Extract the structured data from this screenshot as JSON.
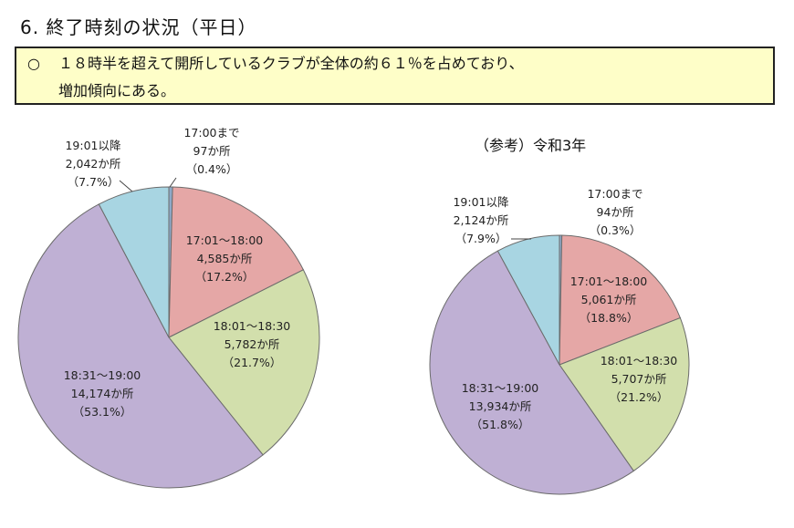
{
  "heading": "6. 終了時刻の状況（平日）",
  "summary": {
    "bullet": "○",
    "line1": "１８時半を超えて開所しているクラブが全体の約６１％を占めており、",
    "line2": "増加傾向にある。"
  },
  "chart_data": [
    {
      "type": "pie",
      "title": "",
      "start": "top",
      "direction": "clockwise",
      "slices": [
        {
          "label": "17:00まで",
          "count": "97か所",
          "pct": "（0.4%）",
          "value": 0.4,
          "color": "#8EA9C8"
        },
        {
          "label": "17:01～18:00",
          "count": "4,585か所",
          "pct": "（17.2%）",
          "value": 17.2,
          "color": "#E5A7A6"
        },
        {
          "label": "18:01～18:30",
          "count": "5,782か所",
          "pct": "（21.7%）",
          "value": 21.7,
          "color": "#D2DFAC"
        },
        {
          "label": "18:31～19:00",
          "count": "14,174か所",
          "pct": "（53.1%）",
          "value": 53.1,
          "color": "#BFB0D4"
        },
        {
          "label": "19:01以降",
          "count": "2,042か所",
          "pct": "（7.7%）",
          "value": 7.7,
          "color": "#A8D5E2"
        }
      ]
    },
    {
      "type": "pie",
      "title": "（参考）令和3年",
      "start": "top",
      "direction": "clockwise",
      "slices": [
        {
          "label": "17:00まで",
          "count": "94か所",
          "pct": "（0.3%）",
          "value": 0.3,
          "color": "#8EA9C8"
        },
        {
          "label": "17:01～18:00",
          "count": "5,061か所",
          "pct": "（18.8%）",
          "value": 18.8,
          "color": "#E5A7A6"
        },
        {
          "label": "18:01～18:30",
          "count": "5,707か所",
          "pct": "（21.2%）",
          "value": 21.2,
          "color": "#D2DFAC"
        },
        {
          "label": "18:31～19:00",
          "count": "13,934か所",
          "pct": "（51.8%）",
          "value": 51.8,
          "color": "#BFB0D4"
        },
        {
          "label": "19:01以降",
          "count": "2,124か所",
          "pct": "（7.9%）",
          "value": 7.9,
          "color": "#A8D5E2"
        }
      ]
    }
  ]
}
